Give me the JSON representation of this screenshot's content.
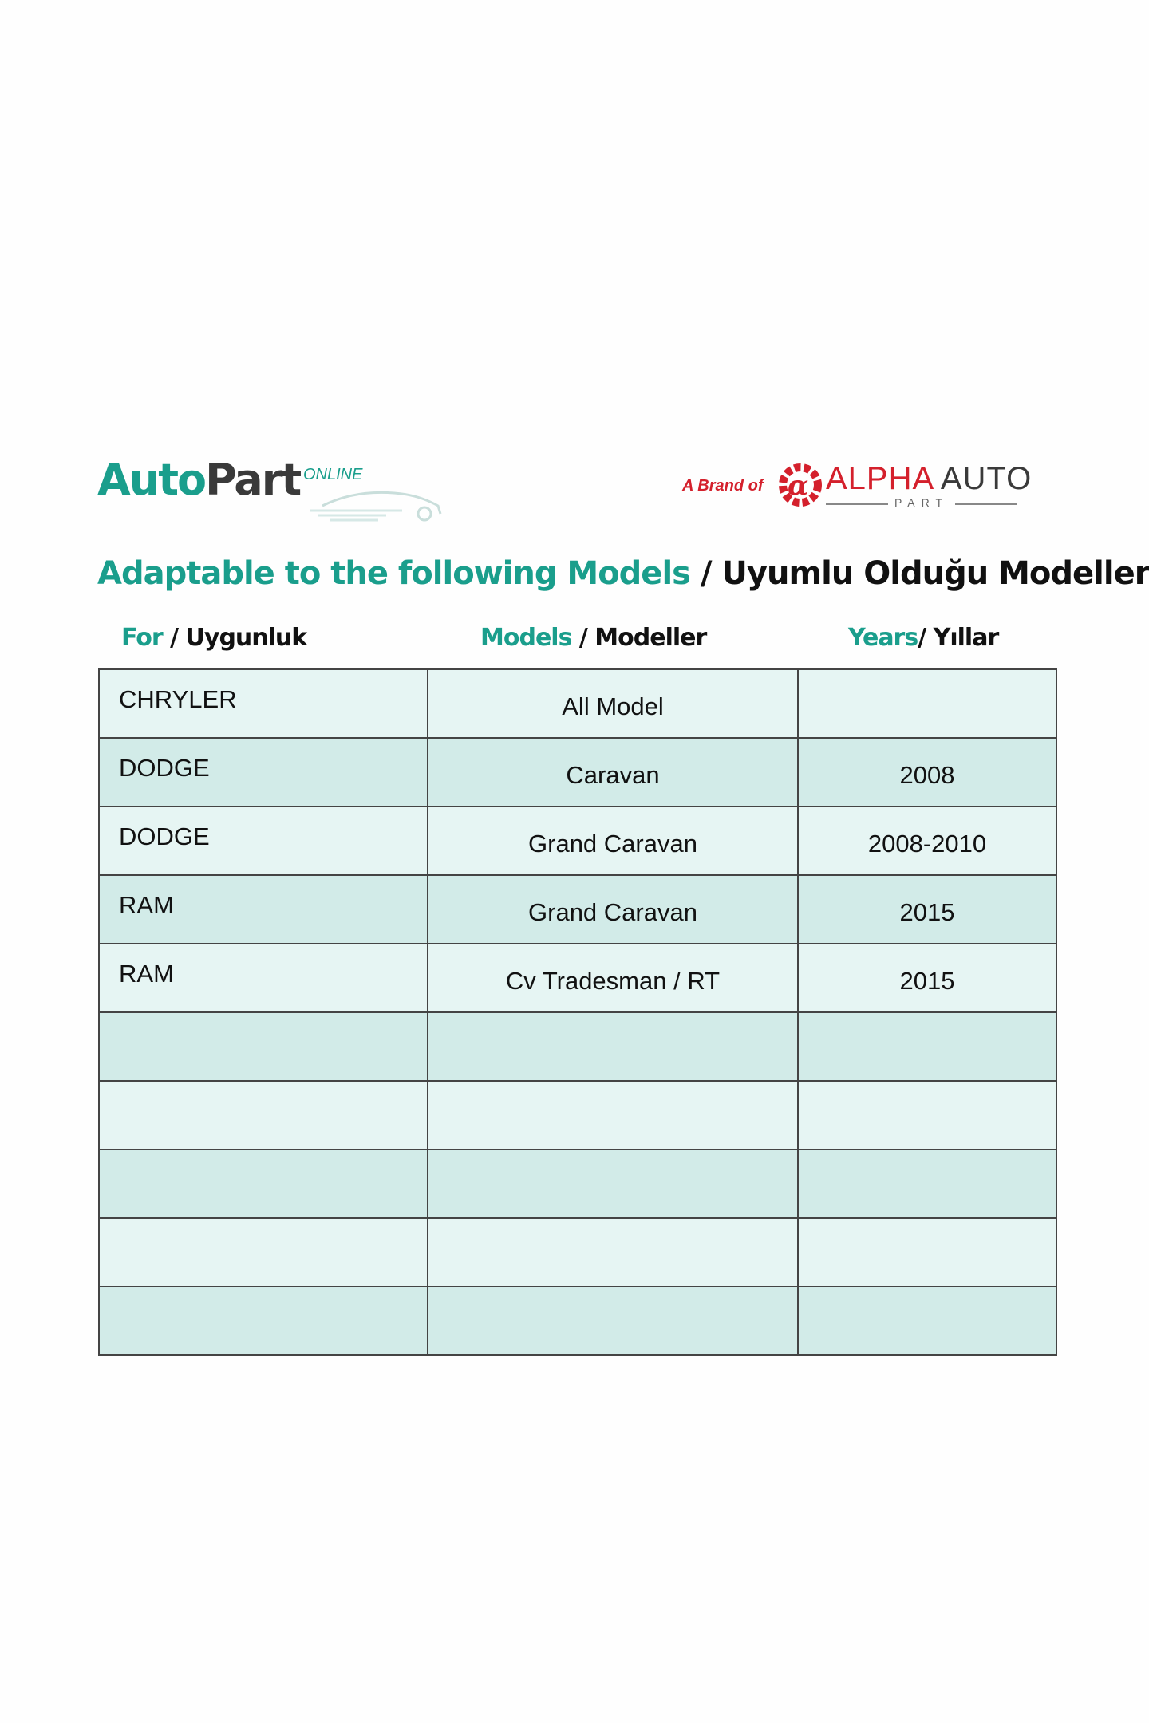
{
  "logos": {
    "left": {
      "word1": "Auto",
      "word2": "Part",
      "suffix": "ONLINE"
    },
    "right": {
      "prefix": "A Brand of",
      "word1": "ALPHA",
      "word2": "AUTO",
      "sub": "PART"
    }
  },
  "title": {
    "en": "Adaptable to the following Models",
    "tr": " / Uyumlu Olduğu Modeller"
  },
  "headers": [
    {
      "en": "For",
      "tr": " / Uygunluk"
    },
    {
      "en": "Models",
      "tr": " / Modeller"
    },
    {
      "en": "Years",
      "tr": "/ Yıllar"
    }
  ],
  "rows": [
    {
      "brand": "CHRYLER",
      "model": "All Model",
      "years": ""
    },
    {
      "brand": "DODGE",
      "model": "Caravan",
      "years": "2008"
    },
    {
      "brand": "DODGE",
      "model": "Grand Caravan",
      "years": "2008-2010"
    },
    {
      "brand": "RAM",
      "model": "Grand Caravan",
      "years": "2015"
    },
    {
      "brand": "RAM",
      "model": "Cv Tradesman / RT",
      "years": "2015"
    },
    {
      "brand": "",
      "model": "",
      "years": ""
    },
    {
      "brand": "",
      "model": "",
      "years": ""
    },
    {
      "brand": "",
      "model": "",
      "years": ""
    },
    {
      "brand": "",
      "model": "",
      "years": ""
    },
    {
      "brand": "",
      "model": "",
      "years": ""
    }
  ],
  "colors": {
    "accent": "#1a9e8c",
    "brand_red": "#d4202c",
    "row_light": "#e6f5f3",
    "row_dark": "#d2ebe8"
  }
}
